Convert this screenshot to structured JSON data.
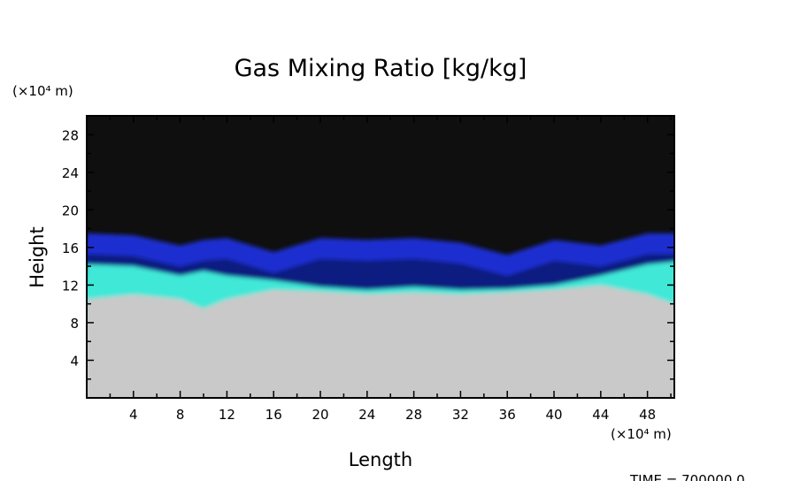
{
  "chart_data": {
    "type": "heatmap",
    "title": "Gas Mixing Ratio [kg/kg]",
    "xlabel": "Length",
    "ylabel": "Height",
    "x_unit": "(×10⁴ m)",
    "y_unit": "(×10⁴ m)",
    "xlim": [
      0,
      50.3
    ],
    "ylim": [
      0,
      30
    ],
    "x_ticks": [
      "4",
      "8",
      "12",
      "16",
      "20",
      "24",
      "28",
      "32",
      "36",
      "40",
      "44",
      "48"
    ],
    "y_ticks": [
      "4",
      "8",
      "12",
      "16",
      "20",
      "24",
      "28"
    ],
    "grid": false,
    "time_label": "TIME = 700000.0",
    "colors": {
      "background": "#0f0f0f",
      "upper_layer": "#1a2fd0",
      "deep_layer": "#0d1f80",
      "cyan_layer": "#3fe8d8",
      "lower_region": "#c9c9c9"
    },
    "layers": {
      "x": [
        0,
        4,
        8,
        10,
        12,
        16,
        20,
        24,
        28,
        32,
        36,
        40,
        44,
        48,
        50.3
      ],
      "blue_top": [
        17.5,
        17.3,
        16.2,
        16.8,
        17.0,
        15.5,
        17.0,
        16.8,
        17.0,
        16.5,
        15.2,
        16.8,
        16.2,
        17.5,
        17.5
      ],
      "cyan_top": [
        14.2,
        14.0,
        13.0,
        13.5,
        13.0,
        12.5,
        11.8,
        11.5,
        11.8,
        11.5,
        11.6,
        12.0,
        13.0,
        14.2,
        14.5
      ],
      "grey_top": [
        10.5,
        11.0,
        10.5,
        9.5,
        10.5,
        11.5,
        11.3,
        11.0,
        11.2,
        11.0,
        11.2,
        11.5,
        12.0,
        11.0,
        10.0
      ]
    }
  }
}
